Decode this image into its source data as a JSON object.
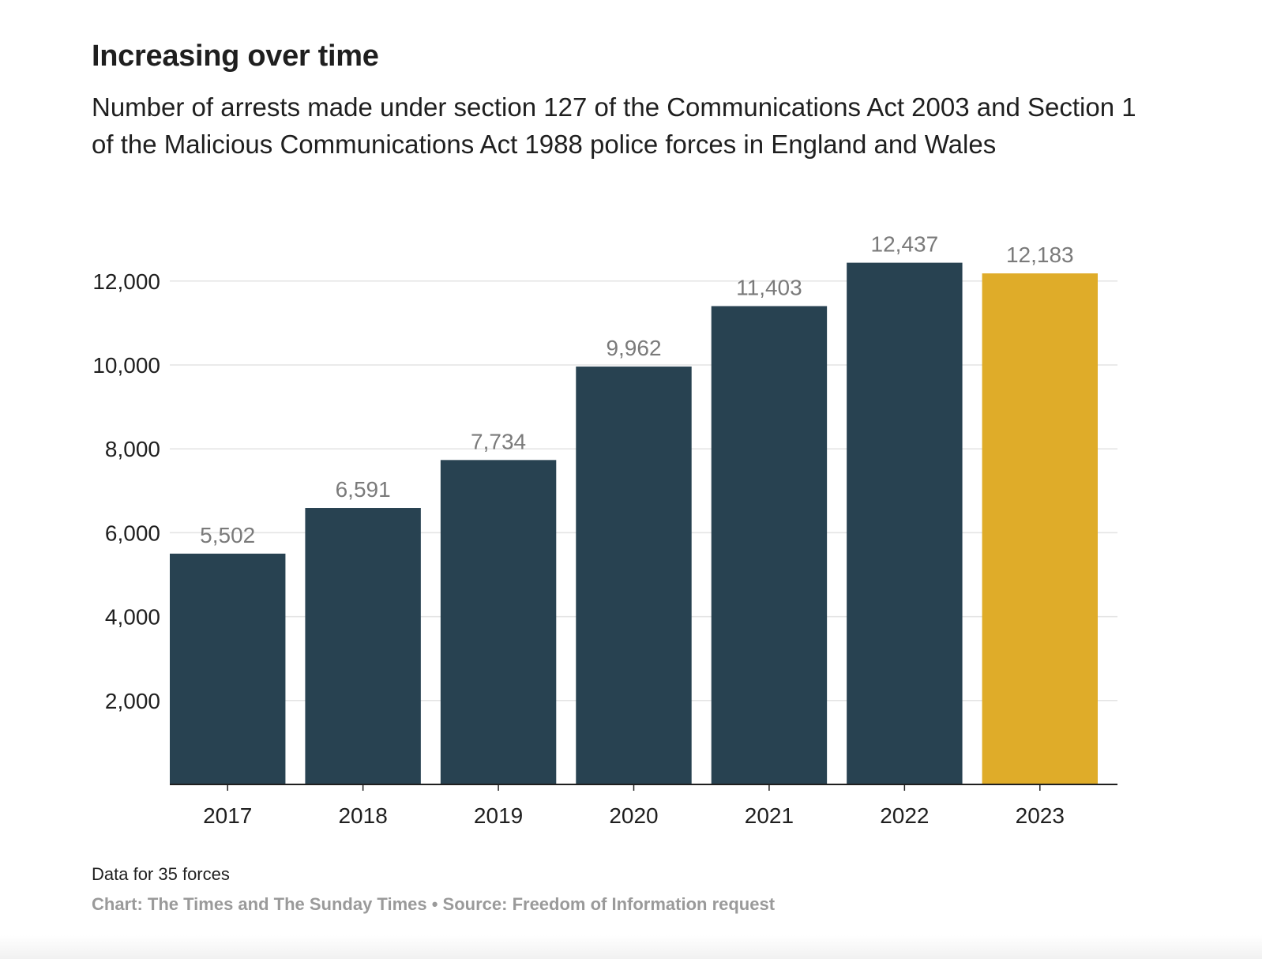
{
  "title": "Increasing over time",
  "subtitle": "Number of arrests made under section 127 of the Communications Act 2003 and Section 1 of the Malicious Communications Act 1988 police forces in England and Wales",
  "note": "Data for 35 forces",
  "credit": "Chart: The Times and The Sunday Times • Source: Freedom of Information request",
  "colors": {
    "bar": "#284251",
    "highlight": "#dfac29",
    "grid": "#e3e3e3",
    "axis": "#1f1f1f",
    "value_label": "#7a7a7a"
  },
  "chart_data": {
    "type": "bar",
    "categories": [
      "2017",
      "2018",
      "2019",
      "2020",
      "2021",
      "2022",
      "2023"
    ],
    "values": [
      5502,
      6591,
      7734,
      9962,
      11403,
      12437,
      12183
    ],
    "value_labels": [
      "5,502",
      "6,591",
      "7,734",
      "9,962",
      "11,403",
      "12,437",
      "12,183"
    ],
    "highlight_category": "2023",
    "ylim": [
      0,
      12000
    ],
    "yticks": [
      2000,
      4000,
      6000,
      8000,
      10000,
      12000
    ],
    "ytick_labels": [
      "2,000",
      "4,000",
      "6,000",
      "8,000",
      "10,000",
      "12,000"
    ],
    "grid": true,
    "xlabel": "",
    "ylabel": ""
  }
}
